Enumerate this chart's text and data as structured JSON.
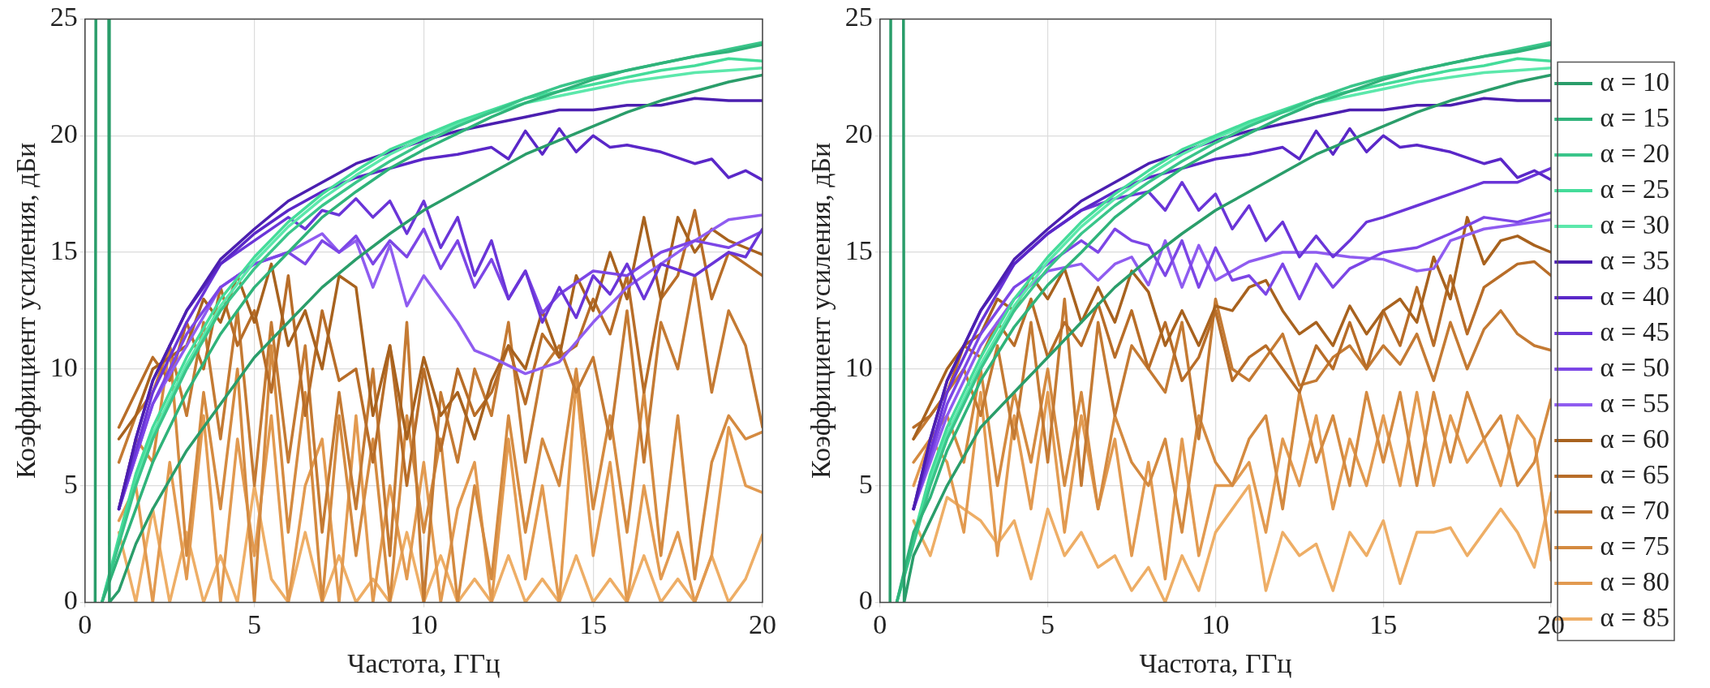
{
  "chart_data": [
    {
      "type": "line",
      "xlabel": "Частота, ГГц",
      "ylabel": "Коэффициент усиления, дБи",
      "xlim": [
        0,
        20
      ],
      "ylim": [
        0,
        25
      ],
      "xticks": [
        0,
        5,
        10,
        15,
        20
      ],
      "yticks": [
        0,
        5,
        10,
        15,
        20,
        25
      ],
      "grid": true,
      "legend": false,
      "marker": "none",
      "line_style": "solid",
      "series": [
        {
          "color": "#2a9d6a",
          "x": [
            0.3,
            0.32,
            0.5,
            0.7,
            0.72,
            1,
            1.5,
            2,
            3,
            4,
            5,
            6,
            7,
            8,
            9,
            10,
            11,
            12,
            13,
            14,
            15,
            16,
            17,
            18,
            19,
            20
          ],
          "values": [
            0,
            25,
            null,
            25,
            0,
            0.5,
            2.5,
            4,
            6.5,
            8.5,
            10.5,
            12,
            13.5,
            14.7,
            15.8,
            16.8,
            17.6,
            18.4,
            19.2,
            19.8,
            20.4,
            21,
            21.5,
            21.9,
            22.3,
            22.6
          ]
        },
        {
          "color": "#2fb37a",
          "x": [
            0.5,
            1,
            1.5,
            2,
            3,
            4,
            5,
            6,
            7,
            8,
            9,
            10,
            11,
            12,
            13,
            14,
            15,
            16,
            17,
            18,
            19,
            20
          ],
          "values": [
            0,
            2,
            4,
            6,
            9,
            11.5,
            13.5,
            15,
            16.5,
            17.6,
            18.6,
            19.4,
            20.1,
            20.8,
            21.4,
            21.9,
            22.4,
            22.8,
            23.1,
            23.4,
            23.6,
            23.9
          ]
        },
        {
          "color": "#3ac58a",
          "x": [
            0.5,
            1,
            1.5,
            2,
            3,
            4,
            5,
            6,
            7,
            8,
            9,
            10,
            11,
            12,
            13,
            14,
            15,
            16,
            17,
            18,
            19,
            20
          ],
          "values": [
            0,
            2.5,
            5,
            7,
            10,
            12.5,
            14.3,
            15.8,
            17,
            18,
            18.9,
            19.7,
            20.4,
            21,
            21.6,
            22.1,
            22.5,
            22.8,
            23.1,
            23.4,
            23.7,
            24
          ]
        },
        {
          "color": "#44dc9a",
          "x": [
            0.5,
            1,
            1.5,
            2,
            3,
            4,
            5,
            6,
            7,
            8,
            9,
            10,
            11,
            12,
            13,
            14,
            15,
            16,
            17,
            18,
            19,
            20
          ],
          "values": [
            0,
            2.8,
            5.5,
            7.5,
            10.5,
            13,
            14.8,
            16.3,
            17.5,
            18.5,
            19.4,
            20,
            20.6,
            21.1,
            21.6,
            21.9,
            22.2,
            22.5,
            22.8,
            23,
            23.3,
            23.2
          ]
        },
        {
          "color": "#5ce8ab",
          "x": [
            0.5,
            1,
            1.5,
            2,
            3,
            4,
            5,
            6,
            7,
            8,
            9,
            10,
            11,
            12,
            13,
            14,
            15,
            16,
            17,
            18,
            19,
            20
          ],
          "values": [
            0,
            2.6,
            5.2,
            7.2,
            10.2,
            12.7,
            14.6,
            16.1,
            17.3,
            18.3,
            19.2,
            19.9,
            20.5,
            21,
            21.4,
            21.7,
            22,
            22.3,
            22.5,
            22.7,
            22.8,
            22.9
          ]
        },
        {
          "color": "#4b1fb0",
          "x": [
            1,
            1.5,
            2,
            3,
            4,
            5,
            6,
            7,
            8,
            9,
            10,
            11,
            12,
            13,
            14,
            15,
            16,
            17,
            18,
            19,
            20
          ],
          "values": [
            4,
            7,
            9.5,
            12.5,
            14.7,
            16,
            17.2,
            18,
            18.8,
            19.3,
            19.8,
            20.2,
            20.5,
            20.8,
            21.1,
            21.1,
            21.3,
            21.3,
            21.6,
            21.5,
            21.5
          ]
        },
        {
          "color": "#5a27c8",
          "x": [
            1,
            1.5,
            2,
            3,
            4,
            5,
            6,
            7,
            8,
            9,
            10,
            11,
            12,
            12.5,
            13,
            13.5,
            14,
            14.5,
            15,
            15.5,
            16,
            17,
            18,
            18.5,
            19,
            19.5,
            20
          ],
          "values": [
            4,
            7,
            9.5,
            12.5,
            14.5,
            15.8,
            16.8,
            17.6,
            18.2,
            18.6,
            19,
            19.2,
            19.5,
            19,
            20.2,
            19.2,
            20.3,
            19.3,
            20,
            19.5,
            19.6,
            19.3,
            18.8,
            19,
            18.2,
            18.5,
            18.1
          ]
        },
        {
          "color": "#6a35d8",
          "x": [
            1,
            1.5,
            2,
            3,
            4,
            5,
            6,
            6.5,
            7,
            7.5,
            8,
            8.5,
            9,
            9.5,
            10,
            10.5,
            11,
            11.5,
            12,
            12.5,
            13,
            13.5,
            14,
            14.5,
            15,
            15.5,
            16,
            16.5,
            17,
            18,
            19,
            19.5,
            20
          ],
          "values": [
            4,
            6.5,
            9,
            12,
            14.5,
            15.5,
            16.5,
            16,
            16.8,
            16.6,
            17.3,
            16.5,
            17.2,
            15.8,
            17.2,
            15.2,
            16.5,
            14,
            15.5,
            13,
            14.2,
            12,
            13.5,
            12.2,
            14,
            13.2,
            14.5,
            13,
            14.5,
            14,
            15,
            14.8,
            16
          ]
        },
        {
          "color": "#7c46e6",
          "x": [
            1,
            2,
            3,
            4,
            5,
            6,
            6.5,
            7,
            7.5,
            8,
            8.5,
            9,
            9.5,
            10,
            10.5,
            11,
            11.5,
            12,
            12.5,
            13,
            13.5,
            14,
            15,
            16,
            17,
            18,
            19,
            20
          ],
          "values": [
            4,
            8.5,
            11.5,
            13.5,
            14.5,
            15,
            14.5,
            15.5,
            15,
            15.7,
            14.5,
            15.5,
            14.8,
            16,
            14.3,
            15.5,
            13.5,
            14.7,
            13,
            14.2,
            12.4,
            13.2,
            14.2,
            14,
            15,
            15.5,
            15.2,
            15.9
          ]
        },
        {
          "color": "#8f5cf0",
          "x": [
            1,
            2,
            3,
            4,
            5,
            6,
            7,
            7.5,
            8,
            8.5,
            9,
            9.5,
            10,
            11,
            11.5,
            12,
            13,
            14,
            15,
            16,
            17,
            18,
            19,
            20
          ],
          "values": [
            4,
            8.5,
            11,
            13.5,
            14.5,
            15,
            15.8,
            15,
            15.5,
            13.5,
            15.3,
            12.7,
            14,
            12,
            10.8,
            10.5,
            9.8,
            10.3,
            12,
            13.5,
            14.5,
            15.5,
            16.4,
            16.6
          ]
        },
        {
          "color": "#a8621e",
          "x": [
            1,
            1.5,
            2,
            2.5,
            3,
            3.5,
            4,
            4.5,
            5,
            5.5,
            6,
            6.5,
            7,
            7.5,
            8,
            8.5,
            9,
            9.5,
            10,
            10.5,
            11,
            11.5,
            12,
            12.5,
            13,
            13.5,
            14,
            14.5,
            15,
            15.5,
            16,
            16.5,
            17,
            17.5,
            18,
            18.5,
            19,
            19.5,
            20
          ],
          "values": [
            7,
            8,
            10,
            10.5,
            11,
            13,
            12,
            14,
            12,
            14.5,
            11,
            12.5,
            10,
            14,
            13.5,
            8,
            11,
            7,
            10.5,
            8,
            9,
            7,
            9.5,
            11,
            10,
            12.5,
            10.5,
            14,
            12.5,
            15,
            13,
            16.5,
            13,
            16.5,
            15,
            16,
            15.5,
            15.2,
            14.9
          ]
        },
        {
          "color": "#b86d28",
          "x": [
            1,
            1.5,
            2,
            2.5,
            3,
            3.5,
            4,
            4.5,
            5,
            5.5,
            6,
            6.5,
            7,
            7.5,
            8,
            8.5,
            9,
            9.5,
            10,
            10.5,
            11,
            11.5,
            12,
            12.5,
            13,
            13.5,
            14,
            14.5,
            15,
            15.5,
            16,
            16.5,
            17,
            17.5,
            18,
            18.5,
            19,
            19.5,
            20
          ],
          "values": [
            7.5,
            9,
            10.5,
            9.5,
            12,
            10,
            13.5,
            11,
            12.5,
            9,
            14,
            8,
            12.5,
            9.5,
            10,
            6,
            11,
            5,
            10,
            6.5,
            10,
            8,
            9,
            11,
            8.5,
            11.5,
            10.5,
            11,
            13,
            11.5,
            14,
            9,
            13,
            14,
            16.8,
            13,
            15,
            14.5,
            14
          ]
        },
        {
          "color": "#c47a33",
          "x": [
            1,
            1.5,
            2,
            2.5,
            3,
            3.5,
            4,
            4.5,
            5,
            5.5,
            6,
            6.5,
            7,
            7.5,
            8,
            8.5,
            9,
            9.5,
            10,
            10.5,
            11,
            11.5,
            12,
            12.5,
            13,
            13.5,
            14,
            14.5,
            15,
            15.5,
            16,
            16.5,
            17,
            17.5,
            18,
            18.5,
            19,
            19.5,
            20
          ],
          "values": [
            6,
            8,
            9,
            11,
            8,
            12,
            7,
            12.5,
            5,
            12,
            6,
            11,
            3,
            9,
            4,
            10,
            2,
            12,
            0,
            9,
            6,
            10,
            8,
            12,
            6,
            10,
            11,
            9,
            10.5,
            7,
            12.5,
            6,
            12,
            10,
            14,
            9,
            12.5,
            11,
            7.5
          ]
        },
        {
          "color": "#d48a40",
          "x": [
            1,
            1.5,
            2,
            2.5,
            3,
            3.5,
            4,
            4.5,
            5,
            5.5,
            6,
            6.5,
            7,
            7.5,
            8,
            8.5,
            9,
            9.5,
            10,
            10.5,
            11,
            11.5,
            12,
            12.5,
            13,
            13.5,
            14,
            14.5,
            15,
            15.5,
            16,
            16.5,
            17,
            17.5,
            18,
            18.5,
            19,
            19.5,
            20
          ],
          "values": [
            4,
            7,
            6,
            11,
            2,
            9,
            4,
            10,
            0,
            11,
            3,
            9,
            0,
            8,
            2,
            7,
            0,
            8,
            3,
            7,
            0,
            5,
            1,
            8,
            3,
            7,
            5,
            10,
            4,
            8,
            3,
            9,
            2,
            8,
            1,
            6,
            8,
            7,
            7.3
          ]
        },
        {
          "color": "#e29a50",
          "x": [
            1,
            1.5,
            2,
            2.5,
            3,
            3.5,
            4,
            4.5,
            5,
            5.5,
            6,
            6.5,
            7,
            7.5,
            8,
            8.5,
            9,
            9.5,
            10,
            10.5,
            11,
            11.5,
            12,
            12.5,
            13,
            13.5,
            14,
            14.5,
            15,
            15.5,
            16,
            16.5,
            17,
            17.5,
            18,
            18.5,
            19,
            19.5,
            20
          ],
          "values": [
            3.5,
            5,
            0,
            6,
            1,
            8,
            0,
            7,
            2,
            8,
            0,
            5,
            7,
            0,
            8,
            0,
            5,
            1,
            6,
            0,
            4,
            6,
            0,
            7,
            1,
            5,
            0,
            9.5,
            2,
            6,
            0,
            5,
            1,
            3,
            0,
            2,
            7.5,
            5,
            4.7
          ]
        },
        {
          "color": "#eeae66",
          "x": [
            1,
            1.5,
            2,
            2.5,
            3,
            3.5,
            4,
            4.5,
            5,
            5.5,
            6,
            6.5,
            7,
            7.5,
            8,
            8.5,
            9,
            9.5,
            10,
            10.5,
            11,
            11.5,
            12,
            12.5,
            13,
            13.5,
            14,
            14.5,
            15,
            15.5,
            16,
            16.5,
            17,
            17.5,
            18,
            18.5,
            19,
            19.5,
            20
          ],
          "values": [
            3,
            0,
            4,
            0,
            3,
            0,
            2,
            0,
            5,
            1,
            0,
            3,
            0,
            2,
            0,
            1,
            0,
            3,
            0,
            2,
            0,
            1,
            0,
            2,
            0,
            1,
            0,
            2,
            0,
            1,
            0,
            2,
            0,
            1,
            0,
            2,
            0,
            1,
            2.9
          ]
        }
      ]
    },
    {
      "type": "line",
      "xlabel": "Частота, ГГц",
      "ylabel": "Коэффициент усиления, дБи",
      "xlim": [
        0,
        20
      ],
      "ylim": [
        0,
        25
      ],
      "xticks": [
        0,
        5,
        10,
        15,
        20
      ],
      "yticks": [
        0,
        5,
        10,
        15,
        20,
        25
      ],
      "grid": true,
      "legend": "right",
      "marker": "none",
      "line_style": "solid",
      "series": [
        {
          "name": "α = 10",
          "color": "#2a9d6a",
          "x": [
            0.3,
            0.32,
            0.5,
            0.7,
            0.72,
            1,
            1.5,
            2,
            3,
            4,
            5,
            6,
            7,
            8,
            9,
            10,
            11,
            12,
            13,
            14,
            15,
            16,
            17,
            18,
            19,
            20
          ],
          "values": [
            0,
            25,
            null,
            25,
            0,
            2,
            3.5,
            5,
            7.5,
            9,
            10.5,
            12,
            13.5,
            14.7,
            15.8,
            16.8,
            17.6,
            18.4,
            19.2,
            19.8,
            20.4,
            21,
            21.5,
            21.9,
            22.3,
            22.6
          ]
        },
        {
          "name": "α = 15",
          "color": "#2fb37a",
          "x": [
            0.5,
            1,
            1.5,
            2,
            3,
            4,
            5,
            6,
            7,
            8,
            9,
            10,
            11,
            12,
            13,
            14,
            15,
            16,
            17,
            18,
            19,
            20
          ],
          "values": [
            0,
            3,
            4.5,
            6.5,
            9.5,
            11.8,
            13.6,
            15,
            16.5,
            17.6,
            18.6,
            19.4,
            20.1,
            20.8,
            21.4,
            21.9,
            22.4,
            22.8,
            23.1,
            23.4,
            23.6,
            23.9
          ]
        },
        {
          "name": "α = 20",
          "color": "#3ac58a",
          "x": [
            0.5,
            1,
            1.5,
            2,
            3,
            4,
            5,
            6,
            7,
            8,
            9,
            10,
            11,
            12,
            13,
            14,
            15,
            16,
            17,
            18,
            19,
            20
          ],
          "values": [
            0,
            2.5,
            5,
            7,
            10,
            12.5,
            14.3,
            15.8,
            17,
            18,
            18.9,
            19.7,
            20.4,
            21,
            21.6,
            22.1,
            22.5,
            22.8,
            23.1,
            23.4,
            23.7,
            24
          ]
        },
        {
          "name": "α = 25",
          "color": "#44dc9a",
          "x": [
            0.5,
            1,
            1.5,
            2,
            3,
            4,
            5,
            6,
            7,
            8,
            9,
            10,
            11,
            12,
            13,
            14,
            15,
            16,
            17,
            18,
            19,
            20
          ],
          "values": [
            0,
            2.8,
            5.5,
            7.5,
            10.5,
            13,
            14.8,
            16.3,
            17.5,
            18.5,
            19.4,
            20,
            20.6,
            21.1,
            21.6,
            21.9,
            22.2,
            22.5,
            22.8,
            23,
            23.3,
            23.2
          ]
        },
        {
          "name": "α = 30",
          "color": "#5ce8ab",
          "x": [
            0.5,
            1,
            1.5,
            2,
            3,
            4,
            5,
            6,
            7,
            8,
            9,
            10,
            11,
            12,
            13,
            14,
            15,
            16,
            17,
            18,
            19,
            20
          ],
          "values": [
            0,
            2.6,
            5.2,
            7.2,
            10.2,
            12.7,
            14.6,
            16.1,
            17.3,
            18.3,
            19.2,
            19.9,
            20.5,
            21,
            21.4,
            21.7,
            22,
            22.3,
            22.5,
            22.7,
            22.8,
            22.9
          ]
        },
        {
          "name": "α = 35",
          "color": "#4b1fb0",
          "x": [
            1,
            1.5,
            2,
            3,
            4,
            5,
            6,
            7,
            8,
            9,
            10,
            11,
            12,
            13,
            14,
            15,
            16,
            17,
            18,
            19,
            20
          ],
          "values": [
            4,
            7,
            9.5,
            12.5,
            14.7,
            16,
            17.2,
            18,
            18.8,
            19.3,
            19.8,
            20.2,
            20.5,
            20.8,
            21.1,
            21.1,
            21.3,
            21.3,
            21.6,
            21.5,
            21.5
          ]
        },
        {
          "name": "α = 40",
          "color": "#5a27c8",
          "x": [
            1,
            1.5,
            2,
            3,
            4,
            5,
            6,
            7,
            8,
            9,
            10,
            11,
            12,
            12.5,
            13,
            13.5,
            14,
            14.5,
            15,
            15.5,
            16,
            17,
            18,
            18.5,
            19,
            19.5,
            20
          ],
          "values": [
            4,
            7,
            9.5,
            12.5,
            14.5,
            15.8,
            16.8,
            17.6,
            18.2,
            18.6,
            19,
            19.2,
            19.5,
            19,
            20.2,
            19.2,
            20.3,
            19.3,
            20,
            19.5,
            19.6,
            19.3,
            18.8,
            19,
            18.2,
            18.5,
            18.1
          ]
        },
        {
          "name": "α = 45",
          "color": "#6a35d8",
          "x": [
            1,
            2,
            3,
            4,
            5,
            6,
            7,
            8,
            8.5,
            9,
            9.5,
            10,
            10.5,
            11,
            11.5,
            12,
            12.5,
            13,
            13.5,
            14,
            14.5,
            15,
            16,
            17,
            18,
            19,
            20
          ],
          "values": [
            4,
            9,
            12,
            14.5,
            15.8,
            16.8,
            17.3,
            17.6,
            16.8,
            18,
            16.8,
            17.5,
            16,
            17,
            15.5,
            16.3,
            14.8,
            15.7,
            14.8,
            15.5,
            16.3,
            16.5,
            17,
            17.5,
            18,
            18,
            18.6
          ]
        },
        {
          "name": "α = 50",
          "color": "#7c46e6",
          "x": [
            1,
            2,
            3,
            4,
            5,
            6,
            6.5,
            7,
            7.5,
            8,
            8.5,
            9,
            9.5,
            10,
            10.5,
            11,
            11.5,
            12,
            12.5,
            13,
            13.5,
            14,
            15,
            16,
            17,
            18,
            19,
            20
          ],
          "values": [
            4,
            8.5,
            11.5,
            13.5,
            14.5,
            15.5,
            15,
            16,
            15.5,
            15.3,
            14,
            15.5,
            13.5,
            15.2,
            13.8,
            14,
            13.2,
            14.5,
            13,
            14.5,
            13.5,
            14.3,
            15,
            15.2,
            15.8,
            16.5,
            16.3,
            16.7
          ]
        },
        {
          "name": "α = 55",
          "color": "#8f5cf0",
          "x": [
            1,
            2,
            3,
            4,
            5,
            6,
            6.5,
            7,
            7.5,
            8,
            8.5,
            9,
            9.5,
            10,
            11,
            12,
            13,
            14,
            15,
            16,
            16.5,
            17,
            18,
            19,
            20
          ],
          "values": [
            4,
            8,
            11,
            13,
            14.2,
            14.5,
            13.8,
            14.5,
            14.8,
            13.6,
            15.5,
            13.5,
            15.3,
            13.8,
            14.6,
            15,
            15,
            14.8,
            14.7,
            14.2,
            14.3,
            15.5,
            16,
            16.2,
            16.4
          ]
        },
        {
          "name": "α = 60",
          "color": "#a8621e",
          "x": [
            1,
            1.5,
            2,
            2.5,
            3,
            3.5,
            4,
            4.5,
            5,
            5.5,
            6,
            6.5,
            7,
            7.5,
            8,
            8.5,
            9,
            9.5,
            10,
            10.5,
            11,
            11.5,
            12,
            12.5,
            13,
            13.5,
            14,
            14.5,
            15,
            15.5,
            16,
            16.5,
            17,
            17.5,
            18,
            18.5,
            19,
            19.5,
            20
          ],
          "values": [
            7,
            8.5,
            10,
            11,
            11.5,
            13,
            12.5,
            14,
            13,
            14.3,
            12,
            13.5,
            12,
            14.2,
            13.3,
            11,
            12.5,
            11,
            12.7,
            12.5,
            13.5,
            13.8,
            12.5,
            11.5,
            12,
            11,
            12.7,
            11.5,
            12.5,
            13,
            12,
            14.8,
            13,
            16.5,
            14.5,
            15.5,
            15.7,
            15.3,
            15
          ]
        },
        {
          "name": "α = 65",
          "color": "#b86d28",
          "x": [
            1,
            1.5,
            2,
            2.5,
            3,
            3.5,
            4,
            4.5,
            5,
            5.5,
            6,
            6.5,
            7,
            7.5,
            8,
            8.5,
            9,
            9.5,
            10,
            10.5,
            11,
            11.5,
            12,
            12.5,
            13,
            13.5,
            14,
            14.5,
            15,
            15.5,
            16,
            16.5,
            17,
            17.5,
            18,
            18.5,
            19,
            19.5,
            20
          ],
          "values": [
            7.5,
            8,
            9,
            11,
            10.5,
            12,
            11,
            13,
            10.5,
            12,
            11,
            12.8,
            10.5,
            12.5,
            10,
            12,
            9.5,
            10.5,
            12.5,
            9.5,
            10.5,
            11,
            10,
            9,
            11,
            10,
            12,
            10,
            12.5,
            11,
            13.5,
            11,
            14,
            11.5,
            13.5,
            14,
            14.5,
            14.6,
            14
          ]
        },
        {
          "name": "α = 70",
          "color": "#c47a33",
          "x": [
            1,
            1.5,
            2,
            2.5,
            3,
            3.5,
            4,
            4.5,
            5,
            5.5,
            6,
            6.5,
            7,
            7.5,
            8,
            8.5,
            9,
            9.5,
            10,
            10.5,
            11,
            11.5,
            12,
            12.5,
            13,
            13.5,
            14,
            14.5,
            15,
            15.5,
            16,
            16.5,
            17,
            17.5,
            18,
            18.5,
            19,
            19.5,
            20
          ],
          "values": [
            7,
            8,
            9,
            10,
            8,
            11,
            7,
            12,
            6,
            13,
            5,
            12,
            8,
            11,
            10,
            9,
            12,
            7,
            13,
            10,
            9.5,
            10.5,
            11.5,
            9.3,
            9.5,
            10.5,
            11,
            10,
            11,
            10.2,
            11.5,
            9.5,
            12,
            10,
            11.7,
            12.5,
            11.5,
            11,
            10.8
          ]
        },
        {
          "name": "α = 75",
          "color": "#d48a40",
          "x": [
            1,
            1.5,
            2,
            2.5,
            3,
            3.5,
            4,
            4.5,
            5,
            5.5,
            6,
            6.5,
            7,
            7.5,
            8,
            8.5,
            9,
            9.5,
            10,
            10.5,
            11,
            11.5,
            12,
            12.5,
            13,
            13.5,
            14,
            14.5,
            15,
            15.5,
            16,
            16.5,
            17,
            17.5,
            18,
            18.5,
            19,
            19.5,
            20
          ],
          "values": [
            6,
            7,
            8,
            6,
            10,
            5,
            9,
            6,
            10,
            5,
            9,
            4,
            8,
            6,
            5,
            7,
            3,
            8,
            6,
            5,
            7,
            8,
            4,
            9,
            6,
            8,
            5,
            9,
            6,
            9,
            5,
            9,
            6,
            9,
            7,
            8,
            5,
            6,
            8.7
          ]
        },
        {
          "name": "α = 80",
          "color": "#e29a50",
          "x": [
            1,
            1.5,
            2,
            2.5,
            3,
            3.5,
            4,
            4.5,
            5,
            5.5,
            6,
            6.5,
            7,
            7.5,
            8,
            8.5,
            9,
            9.5,
            10,
            10.5,
            11,
            11.5,
            12,
            12.5,
            13,
            13.5,
            14,
            14.5,
            15,
            15.5,
            16,
            16.5,
            17,
            17.5,
            18,
            18.5,
            19,
            19.5,
            20
          ],
          "values": [
            5,
            7,
            6,
            3,
            9,
            2,
            8,
            4,
            9,
            3,
            8,
            4,
            7,
            2,
            6,
            1,
            7,
            2,
            5,
            5,
            6,
            3,
            7,
            5,
            8,
            4,
            7,
            5,
            8,
            5,
            9,
            5,
            8,
            6,
            7,
            5,
            8,
            7,
            1.8
          ]
        },
        {
          "name": "α = 85",
          "color": "#eeae66",
          "x": [
            1,
            1.5,
            2,
            2.5,
            3,
            3.5,
            4,
            4.5,
            5,
            5.5,
            6,
            6.5,
            7,
            7.5,
            8,
            8.5,
            9,
            9.5,
            10,
            10.5,
            11,
            11.5,
            12,
            12.5,
            13,
            13.5,
            14,
            14.5,
            15,
            15.5,
            16,
            16.5,
            17,
            17.5,
            18,
            18.5,
            19,
            19.5,
            20
          ],
          "values": [
            3.5,
            2,
            4.5,
            4,
            3.5,
            2.5,
            3.5,
            1,
            4,
            2,
            3,
            1.5,
            2,
            0.5,
            1.5,
            0,
            2,
            0.5,
            3,
            4,
            5,
            0.5,
            3,
            2,
            2.5,
            0.5,
            3,
            2,
            3.5,
            0.8,
            3,
            3,
            3.2,
            2,
            3,
            4,
            3,
            1.5,
            4.7
          ]
        }
      ]
    }
  ]
}
